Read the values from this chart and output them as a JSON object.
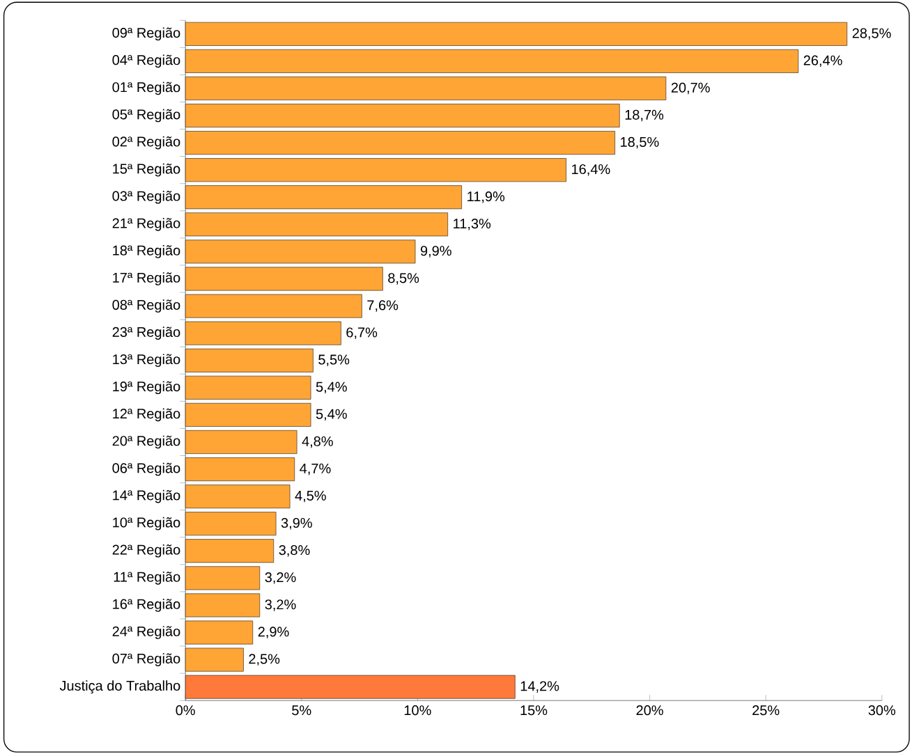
{
  "chart_data": {
    "type": "bar",
    "orientation": "horizontal",
    "categories": [
      "09ª Região",
      "04ª Região",
      "01ª Região",
      "05ª Região",
      "02ª Região",
      "15ª Região",
      "03ª Região",
      "21ª Região",
      "18ª Região",
      "17ª Região",
      "08ª Região",
      "23ª Região",
      "13ª Região",
      "19ª Região",
      "12ª Região",
      "20ª Região",
      "06ª Região",
      "14ª Região",
      "10ª Região",
      "22ª Região",
      "11ª Região",
      "16ª Região",
      "24ª Região",
      "07ª Região",
      "Justiça do Trabalho"
    ],
    "values": [
      28.5,
      26.4,
      20.7,
      18.7,
      18.5,
      16.4,
      11.9,
      11.3,
      9.9,
      8.5,
      7.6,
      6.7,
      5.5,
      5.4,
      5.4,
      4.8,
      4.7,
      4.5,
      3.9,
      3.8,
      3.2,
      3.2,
      2.9,
      2.5,
      14.2
    ],
    "value_labels": [
      "28,5%",
      "26,4%",
      "20,7%",
      "18,7%",
      "18,5%",
      "16,4%",
      "11,9%",
      "11,3%",
      "9,9%",
      "8,5%",
      "7,6%",
      "6,7%",
      "5,5%",
      "5,4%",
      "5,4%",
      "4,8%",
      "4,7%",
      "4,5%",
      "3,9%",
      "3,8%",
      "3,2%",
      "3,2%",
      "2,9%",
      "2,5%",
      "14,2%"
    ],
    "colors": [
      "#ffa535",
      "#ffa535",
      "#ffa535",
      "#ffa535",
      "#ffa535",
      "#ffa535",
      "#ffa535",
      "#ffa535",
      "#ffa535",
      "#ffa535",
      "#ffa535",
      "#ffa535",
      "#ffa535",
      "#ffa535",
      "#ffa535",
      "#ffa535",
      "#ffa535",
      "#ffa535",
      "#ffa535",
      "#ffa535",
      "#ffa535",
      "#ffa535",
      "#ffa535",
      "#ffa535",
      "#ff7a3a"
    ],
    "xlim": [
      0,
      30
    ],
    "xticks": [
      {
        "value": 0,
        "label": "0%"
      },
      {
        "value": 5,
        "label": "5%"
      },
      {
        "value": 10,
        "label": "10%"
      },
      {
        "value": 15,
        "label": "15%"
      },
      {
        "value": 20,
        "label": "20%"
      },
      {
        "value": 25,
        "label": "25%"
      },
      {
        "value": 30,
        "label": "30%"
      }
    ],
    "grid": false
  }
}
